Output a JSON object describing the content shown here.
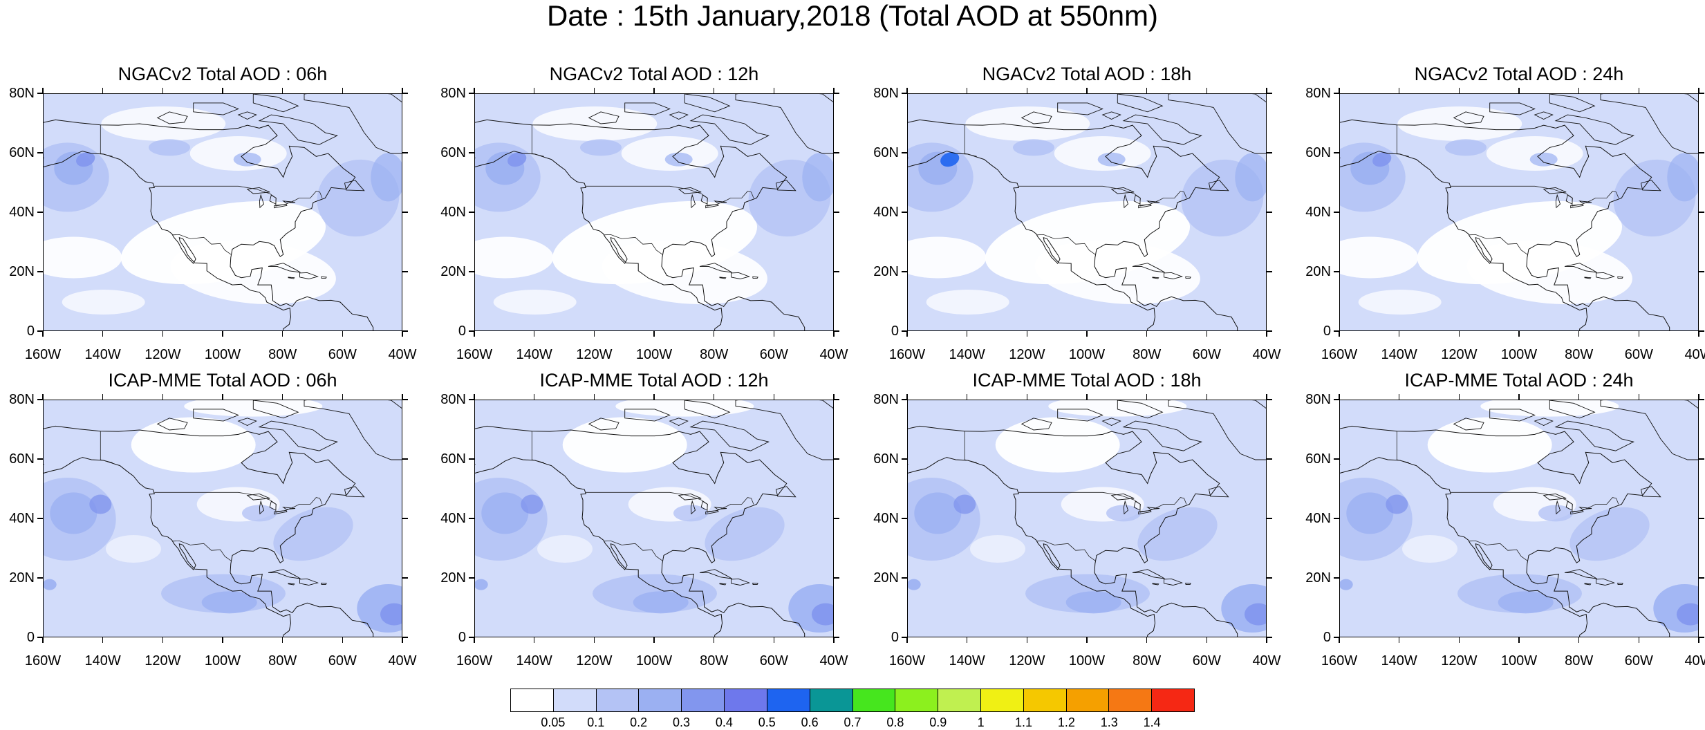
{
  "title": "Date : 15th January,2018 (Total AOD at 550nm)",
  "panels": [
    {
      "title": "NGACv2 Total AOD : 06h",
      "model": "NGACv2",
      "lead": "06h",
      "shading": "light"
    },
    {
      "title": "NGACv2 Total AOD : 12h",
      "model": "NGACv2",
      "lead": "12h",
      "shading": "light"
    },
    {
      "title": "NGACv2 Total AOD : 18h",
      "model": "NGACv2",
      "lead": "18h",
      "shading": "light"
    },
    {
      "title": "NGACv2 Total AOD : 24h",
      "model": "NGACv2",
      "lead": "24h",
      "shading": "light"
    },
    {
      "title": "ICAP-MME Total AOD : 06h",
      "model": "ICAP-MME",
      "lead": "06h",
      "shading": "moderate"
    },
    {
      "title": "ICAP-MME Total AOD : 12h",
      "model": "ICAP-MME",
      "lead": "12h",
      "shading": "moderate"
    },
    {
      "title": "ICAP-MME Total AOD : 18h",
      "model": "ICAP-MME",
      "lead": "18h",
      "shading": "moderate"
    },
    {
      "title": "ICAP-MME Total AOD : 24h",
      "model": "ICAP-MME",
      "lead": "24h",
      "shading": "moderate"
    }
  ],
  "lat_labels": [
    "80N",
    "60N",
    "40N",
    "20N",
    "0"
  ],
  "lon_labels": [
    "160W",
    "140W",
    "120W",
    "100W",
    "80W",
    "60W",
    "40W"
  ],
  "lat_range": [
    0,
    80
  ],
  "lon_range": [
    -160,
    -40
  ],
  "colorbar": {
    "colors": [
      "#ffffff",
      "#d2dcfa",
      "#b4c3f5",
      "#9bb0f2",
      "#8296ee",
      "#6e78ec",
      "#1e64f0",
      "#0a9696",
      "#46e61e",
      "#8cf01e",
      "#c0f050",
      "#f0f014",
      "#f5c800",
      "#f5a000",
      "#f57814",
      "#f52814"
    ],
    "labels": [
      "0.05",
      "0.1",
      "0.2",
      "0.3",
      "0.4",
      "0.5",
      "0.6",
      "0.7",
      "0.8",
      "0.9",
      "1",
      "1.1",
      "1.2",
      "1.3",
      "1.4"
    ]
  }
}
